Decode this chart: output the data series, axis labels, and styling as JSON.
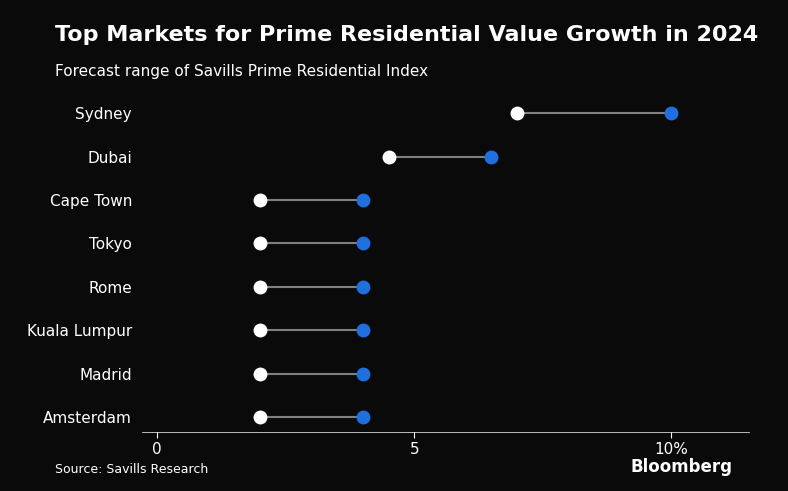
{
  "title": "Top Markets for Prime Residential Value Growth in 2024",
  "subtitle": "Forecast range of Savills Prime Residential Index",
  "source": "Source: Savills Research",
  "bloomberg": "Bloomberg",
  "background_color": "#0a0a0a",
  "text_color": "#ffffff",
  "line_color": "#808080",
  "dot_start_color": "#ffffff",
  "dot_end_color": "#1f6fde",
  "categories": [
    "Sydney",
    "Dubai",
    "Cape Town",
    "Tokyo",
    "Rome",
    "Kuala Lumpur",
    "Madrid",
    "Amsterdam"
  ],
  "range_start": [
    7.0,
    4.5,
    2.0,
    2.0,
    2.0,
    2.0,
    2.0,
    2.0
  ],
  "range_end": [
    10.0,
    6.5,
    4.0,
    4.0,
    4.0,
    4.0,
    4.0,
    4.0
  ],
  "xlim": [
    -0.3,
    11.5
  ],
  "xticks": [
    0,
    5,
    10
  ],
  "xtick_labels": [
    "0",
    "5",
    "10%"
  ],
  "title_fontsize": 16,
  "subtitle_fontsize": 11,
  "label_fontsize": 11,
  "source_fontsize": 9,
  "dot_size": 100
}
